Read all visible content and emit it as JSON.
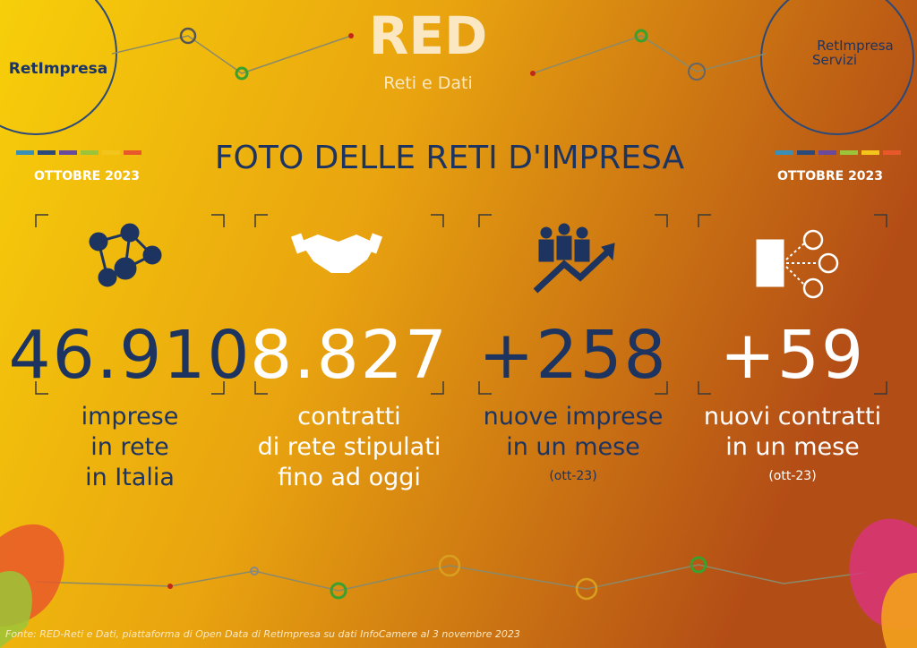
{
  "header": {
    "left_logo": "RetImpresa",
    "center_logo": "RED",
    "center_logo_subtitle": "Reti e Dati",
    "right_logo": [
      "RetImpresa",
      "Servizi"
    ]
  },
  "title": "FOTO DELLE RETI D'IMPRESA",
  "date_left": "OTTOBRE 2023",
  "date_right": "OTTOBRE 2023",
  "stats": [
    {
      "value": "46.910",
      "label": [
        "imprese",
        "in rete",
        "in Italia"
      ]
    },
    {
      "value": "8.827",
      "label": [
        "contratti",
        "di rete stipulati",
        "fino ad oggi"
      ]
    },
    {
      "value": "+258",
      "label": [
        "nuove imprese",
        "in un mese"
      ],
      "note": "(ott-23)"
    },
    {
      "value": "+59",
      "label": [
        "nuovi contratti",
        "in un mese"
      ],
      "note": "(ott-23)"
    }
  ],
  "footer": "Fonte: RED-Reti e Dati, piattaforma di Open Data di RetImpresa su dati InfoCamere al 3 novembre 2023"
}
